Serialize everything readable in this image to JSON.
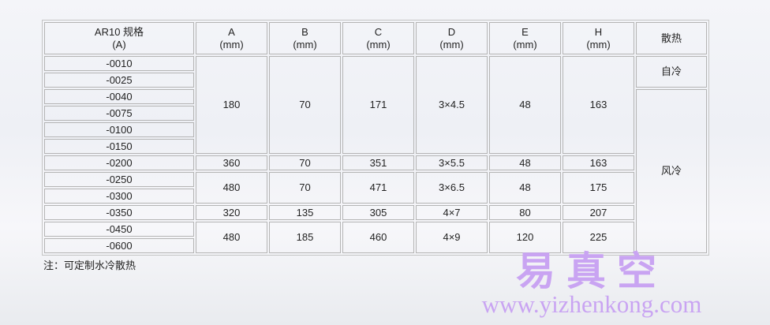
{
  "table": {
    "headers": [
      {
        "line1": "AR10  规格",
        "line2": "(A)"
      },
      {
        "line1": "A",
        "line2": "(mm)"
      },
      {
        "line1": "B",
        "line2": "(mm)"
      },
      {
        "line1": "C",
        "line2": "(mm)"
      },
      {
        "line1": "D",
        "line2": "(mm)"
      },
      {
        "line1": "E",
        "line2": "(mm)"
      },
      {
        "line1": "H",
        "line2": "(mm)"
      },
      {
        "line1": "散热",
        "line2": ""
      }
    ],
    "models": [
      "-0010",
      "-0025",
      "-0040",
      "-0075",
      "-0100",
      "-0150",
      "-0200",
      "-0250",
      "-0300",
      "-0350",
      "-0450",
      "-0600"
    ],
    "groups": [
      {
        "start": 0,
        "span": 6,
        "values": [
          "180",
          "70",
          "171",
          "3×4.5",
          "48",
          "163"
        ]
      },
      {
        "start": 6,
        "span": 1,
        "values": [
          "360",
          "70",
          "351",
          "3×5.5",
          "48",
          "163"
        ]
      },
      {
        "start": 7,
        "span": 2,
        "values": [
          "480",
          "70",
          "471",
          "3×6.5",
          "48",
          "175"
        ]
      },
      {
        "start": 9,
        "span": 1,
        "values": [
          "320",
          "135",
          "305",
          "4×7",
          "80",
          "207"
        ]
      },
      {
        "start": 10,
        "span": 2,
        "values": [
          "480",
          "185",
          "460",
          "4×9",
          "120",
          "225"
        ]
      }
    ],
    "cooling": [
      {
        "start": 0,
        "span": 2,
        "label": "自冷"
      },
      {
        "start": 2,
        "span": 10,
        "label": "风冷"
      }
    ]
  },
  "note": "注：可定制水冷散热",
  "watermark": {
    "name": "易真空",
    "url": "www.yizhenkong.com",
    "color": "#c9a4f2"
  }
}
